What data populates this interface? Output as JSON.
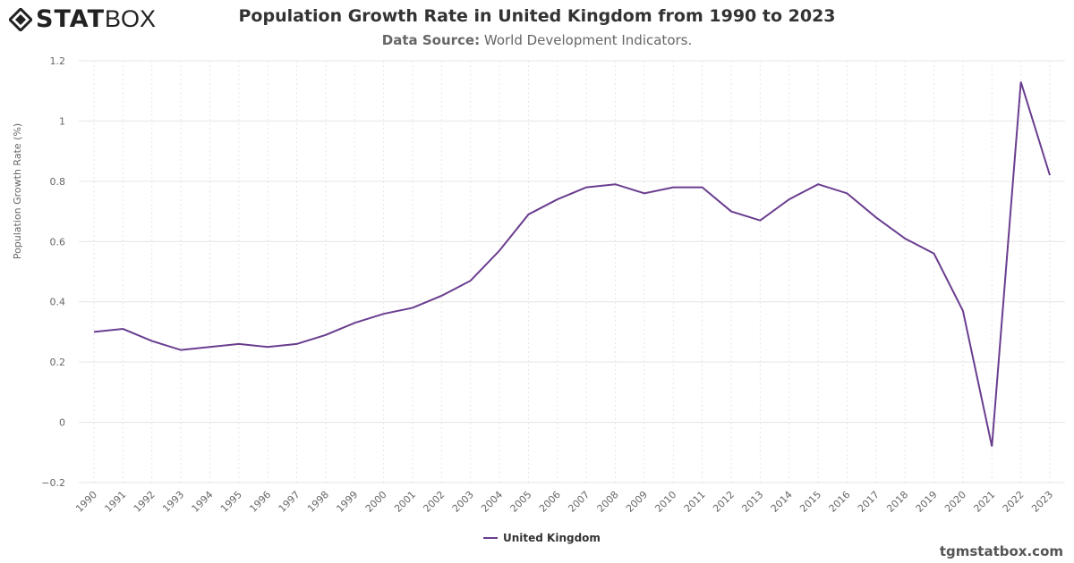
{
  "logo": {
    "text": "STATBOX",
    "bold_part": "STAT",
    "light_part": "BOX"
  },
  "title": "Population Growth Rate in United Kingdom from 1990 to 2023",
  "subtitle": {
    "label": "Data Source:",
    "value": "World Development Indicators."
  },
  "credit": "tgmstatbox.com",
  "chart_data": {
    "type": "line",
    "title": "Population Growth Rate in United Kingdom from 1990 to 2023",
    "ylabel": "Population Growth Rate (%)",
    "xlabel": "",
    "ylim": [
      -0.2,
      1.2
    ],
    "yticks": [
      "−0.2",
      "0",
      "0.2",
      "0.4",
      "0.6",
      "0.8",
      "1",
      "1.2"
    ],
    "grid": true,
    "legend": "bottom-center",
    "color": "#6a3d8f",
    "x": [
      1990,
      1991,
      1992,
      1993,
      1994,
      1995,
      1996,
      1997,
      1998,
      1999,
      2000,
      2001,
      2002,
      2003,
      2004,
      2005,
      2006,
      2007,
      2008,
      2009,
      2010,
      2011,
      2012,
      2013,
      2014,
      2015,
      2016,
      2017,
      2018,
      2019,
      2020,
      2021,
      2022,
      2023
    ],
    "series": [
      {
        "name": "United Kingdom",
        "values": [
          0.3,
          0.31,
          0.27,
          0.24,
          0.25,
          0.26,
          0.25,
          0.26,
          0.29,
          0.33,
          0.36,
          0.38,
          0.42,
          0.47,
          0.57,
          0.69,
          0.74,
          0.78,
          0.79,
          0.76,
          0.78,
          0.78,
          0.7,
          0.67,
          0.74,
          0.79,
          0.76,
          0.68,
          0.61,
          0.56,
          0.37,
          -0.08,
          1.13,
          0.82
        ]
      }
    ]
  }
}
